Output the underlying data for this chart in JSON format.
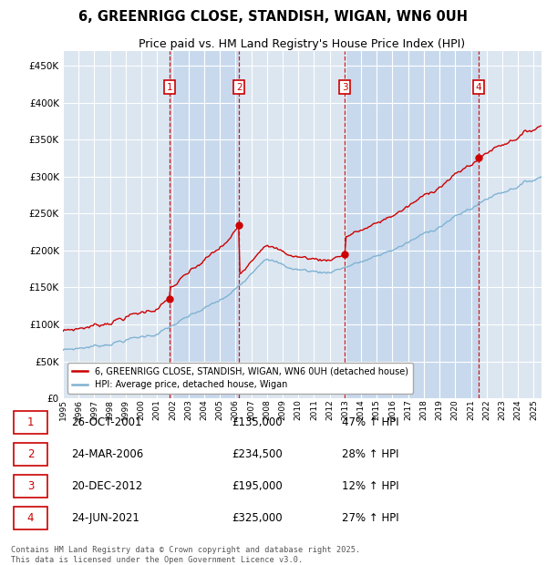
{
  "title": "6, GREENRIGG CLOSE, STANDISH, WIGAN, WN6 0UH",
  "subtitle": "Price paid vs. HM Land Registry's House Price Index (HPI)",
  "ylim": [
    0,
    470000
  ],
  "yticks": [
    0,
    50000,
    100000,
    150000,
    200000,
    250000,
    300000,
    350000,
    400000,
    450000
  ],
  "ytick_labels": [
    "£0",
    "£50K",
    "£100K",
    "£150K",
    "£200K",
    "£250K",
    "£300K",
    "£350K",
    "£400K",
    "£450K"
  ],
  "bg_color": "#dce6f1",
  "line_color_red": "#cc0000",
  "line_color_blue": "#7fb3d3",
  "vline_color": "#cc0000",
  "grid_color": "#ffffff",
  "stripe_color": "#c8d9ed",
  "transactions": [
    {
      "num": 1,
      "date_str": "26-OCT-2001",
      "year": 2001.82,
      "price": 135000,
      "pct": "47%",
      "dir": "↑"
    },
    {
      "num": 2,
      "date_str": "24-MAR-2006",
      "year": 2006.23,
      "price": 234500,
      "pct": "28%",
      "dir": "↑"
    },
    {
      "num": 3,
      "date_str": "20-DEC-2012",
      "year": 2012.97,
      "price": 195000,
      "pct": "12%",
      "dir": "↑"
    },
    {
      "num": 4,
      "date_str": "24-JUN-2021",
      "year": 2021.48,
      "price": 325000,
      "pct": "27%",
      "dir": "↑"
    }
  ],
  "legend_label_red": "6, GREENRIGG CLOSE, STANDISH, WIGAN, WN6 0UH (detached house)",
  "legend_label_blue": "HPI: Average price, detached house, Wigan",
  "footer": "Contains HM Land Registry data © Crown copyright and database right 2025.\nThis data is licensed under the Open Government Licence v3.0.",
  "xmin": 1995,
  "xmax": 2025.5,
  "xticks": [
    1995,
    1996,
    1997,
    1998,
    1999,
    2000,
    2001,
    2002,
    2003,
    2004,
    2005,
    2006,
    2007,
    2008,
    2009,
    2010,
    2011,
    2012,
    2013,
    2014,
    2015,
    2016,
    2017,
    2018,
    2019,
    2020,
    2021,
    2022,
    2023,
    2024,
    2025
  ]
}
